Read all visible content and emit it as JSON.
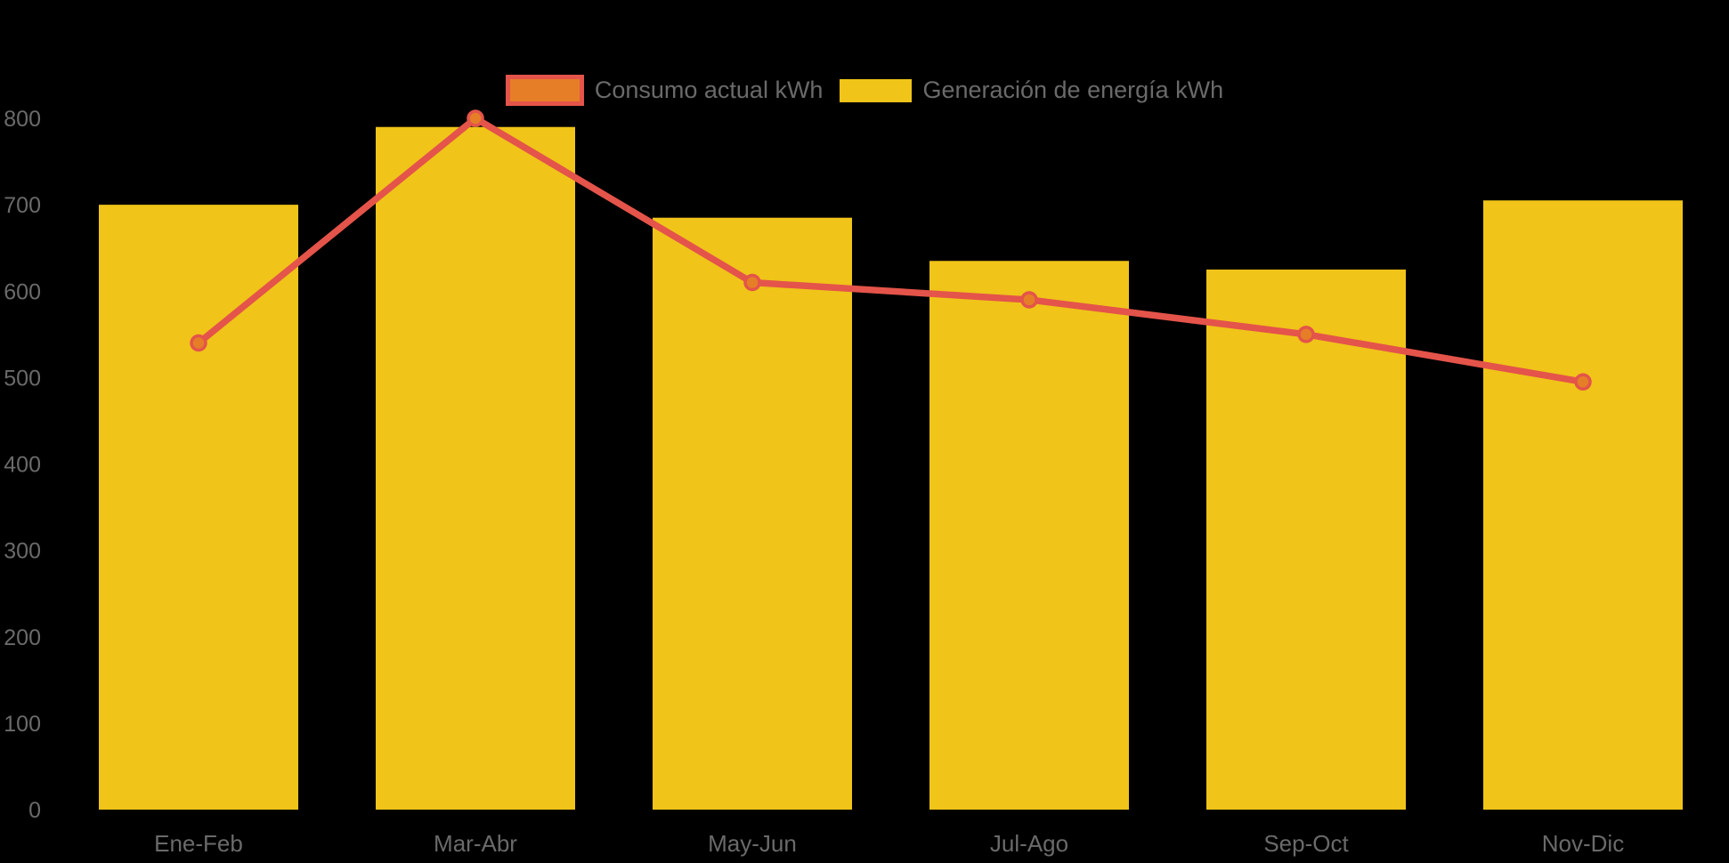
{
  "colors": {
    "background": "#000000",
    "bar_yellow": "#F0C419",
    "line_red": "#E4544A",
    "marker_orange": "#E67E27",
    "axis_text_gray": "#6A6A6A"
  },
  "legend": {
    "items": [
      {
        "label": "Consumo actual kWh",
        "swatch": "orange-rect-red-border"
      },
      {
        "label": "Generación de energía kWh",
        "swatch": "yellow-rect"
      }
    ]
  },
  "chart_data": {
    "type": "bar+line",
    "title": "",
    "xlabel": "",
    "ylabel": "",
    "categories": [
      "Ene-Feb",
      "Mar-Abr",
      "May-Jun",
      "Jul-Ago",
      "Sep-Oct",
      "Nov-Dic"
    ],
    "series": [
      {
        "name": "Consumo actual kWh",
        "type": "line",
        "color": "#E4544A",
        "marker_fill": "#E67E27",
        "values": [
          540,
          800,
          610,
          590,
          550,
          495
        ]
      },
      {
        "name": "Generación de energía kWh",
        "type": "bar",
        "color": "#F0C419",
        "values": [
          700,
          790,
          685,
          635,
          625,
          705
        ]
      }
    ],
    "ylim": [
      0,
      800
    ],
    "yticks": [
      0,
      100,
      200,
      300,
      400,
      500,
      600,
      700,
      800
    ],
    "grid": false,
    "legend_position": "top-center"
  }
}
